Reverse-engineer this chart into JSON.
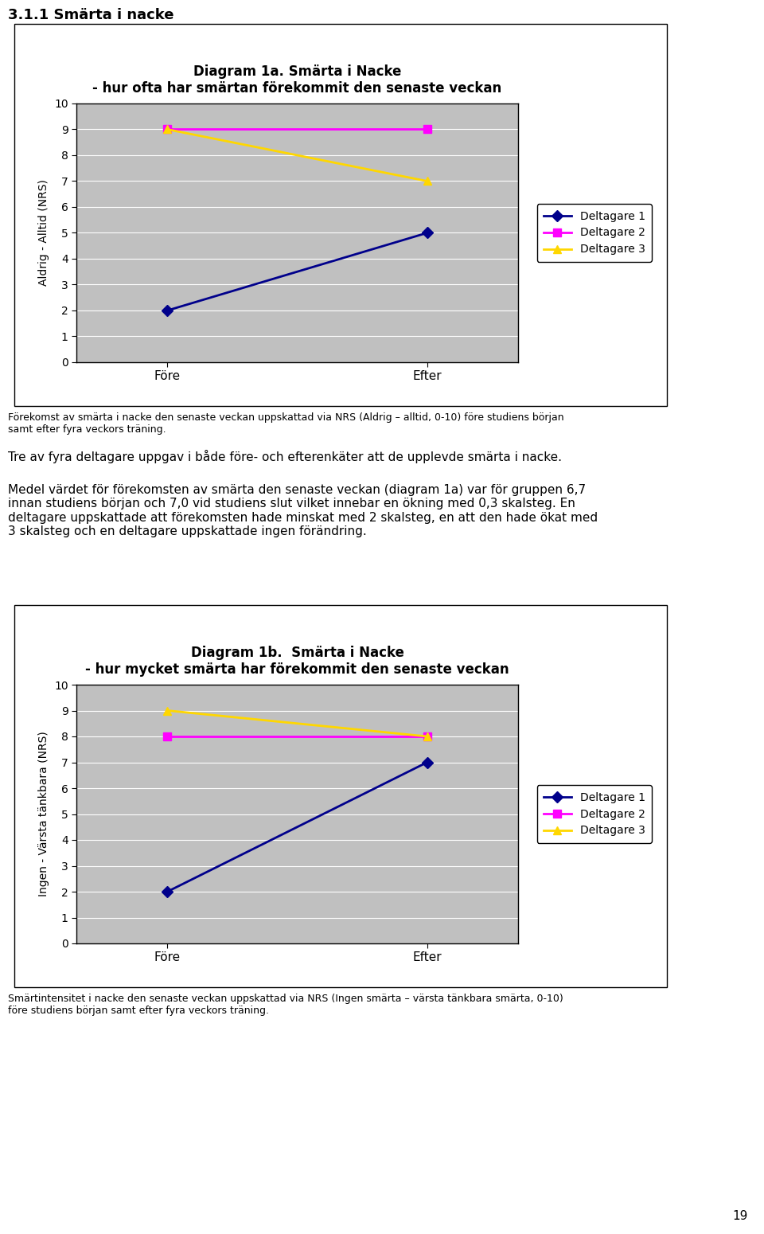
{
  "section_title": "3.1.1 Smärta i nacke",
  "chart1": {
    "title_line1": "Diagram 1a. Smärta i Nacke",
    "title_line2": "- hur ofta har smärtan förekommit den senaste veckan",
    "ylabel": "Aldrig - Alltid (NRS)",
    "xticklabels": [
      "Före",
      "Efter"
    ],
    "ylim": [
      0,
      10
    ],
    "yticks": [
      0,
      1,
      2,
      3,
      4,
      5,
      6,
      7,
      8,
      9,
      10
    ],
    "series": [
      {
        "label": "Deltagare 1",
        "color": "#00008B",
        "marker": "D",
        "fore": 2,
        "efter": 5
      },
      {
        "label": "Deltagare 2",
        "color": "#FF00FF",
        "marker": "s",
        "fore": 9,
        "efter": 9
      },
      {
        "label": "Deltagare 3",
        "color": "#FFD700",
        "marker": "^",
        "fore": 9,
        "efter": 7
      }
    ],
    "caption": "Förekomst av smärta i nacke den senaste veckan uppskattad via NRS (Aldrig – alltid, 0-10) före studiens början\nsamt efter fyra veckors träning."
  },
  "middle_text_1": "Tre av fyra deltagare uppgav i både före- och efterenkäter att de upplevde smärta i nacke.",
  "middle_text_2": "Medel värdet för förekomsten av smärta den senaste veckan (diagram 1a) var för gruppen 6,7\ninnan studiens början och 7,0 vid studiens slut vilket innebar en ökning med 0,3 skalsteg. En\ndeltagare uppskattade att förekomsten hade minskat med 2 skalsteg, en att den hade ökat med\n3 skalsteg och en deltagare uppskattade ingen förändring.",
  "chart2": {
    "title_line1": "Diagram 1b.  Smärta i Nacke",
    "title_line2": "- hur mycket smärta har förekommit den senaste veckan",
    "ylabel": "Ingen - Värsta tänkbara (NRS)",
    "xticklabels": [
      "Före",
      "Efter"
    ],
    "ylim": [
      0,
      10
    ],
    "yticks": [
      0,
      1,
      2,
      3,
      4,
      5,
      6,
      7,
      8,
      9,
      10
    ],
    "series": [
      {
        "label": "Deltagare 1",
        "color": "#00008B",
        "marker": "D",
        "fore": 2,
        "efter": 7
      },
      {
        "label": "Deltagare 2",
        "color": "#FF00FF",
        "marker": "s",
        "fore": 8,
        "efter": 8
      },
      {
        "label": "Deltagare 3",
        "color": "#FFD700",
        "marker": "^",
        "fore": 9,
        "efter": 8
      }
    ],
    "caption": "Smärtintensitet i nacke den senaste veckan uppskattad via NRS (Ingen smärta – värsta tänkbara smärta, 0-10)\nföre studiens början samt efter fyra veckors träning."
  },
  "page_number": "19",
  "plot_area_color": "#C0C0C0",
  "grid_color": "#FFFFFF",
  "legend_bg": "#FFFFFF",
  "border_color": "#000000"
}
